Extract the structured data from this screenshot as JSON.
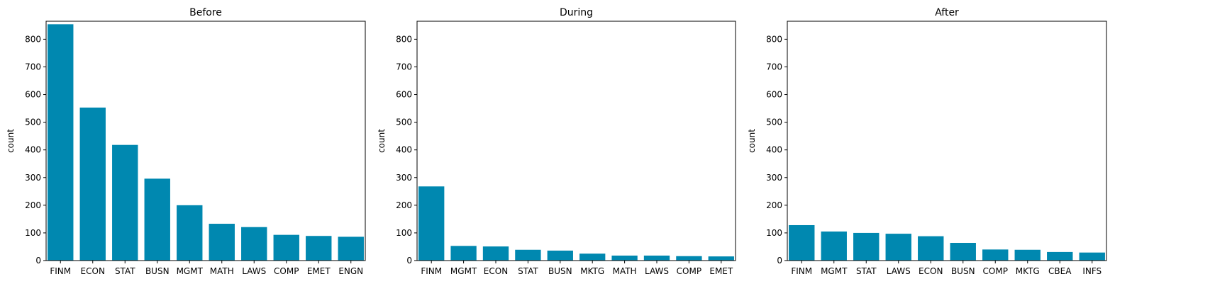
{
  "chart_data": [
    {
      "type": "bar",
      "title": "Before",
      "xlabel": "",
      "ylabel": "count",
      "ylim": [
        0,
        865
      ],
      "yticks": [
        0,
        100,
        200,
        300,
        400,
        500,
        600,
        700,
        800
      ],
      "color": "#0088b0",
      "categories": [
        "FINM",
        "ECON",
        "STAT",
        "BUSN",
        "MGMT",
        "MATH",
        "LAWS",
        "COMP",
        "EMET",
        "ENGN"
      ],
      "values": [
        854,
        553,
        418,
        296,
        200,
        133,
        121,
        93,
        89,
        86
      ]
    },
    {
      "type": "bar",
      "title": "During",
      "xlabel": "",
      "ylabel": "count",
      "ylim": [
        0,
        865
      ],
      "yticks": [
        0,
        100,
        200,
        300,
        400,
        500,
        600,
        700,
        800
      ],
      "color": "#0088b0",
      "categories": [
        "FINM",
        "MGMT",
        "ECON",
        "STAT",
        "BUSN",
        "MKTG",
        "MATH",
        "LAWS",
        "COMP",
        "EMET"
      ],
      "values": [
        268,
        53,
        51,
        39,
        36,
        25,
        18,
        18,
        16,
        15
      ]
    },
    {
      "type": "bar",
      "title": "After",
      "xlabel": "",
      "ylabel": "count",
      "ylim": [
        0,
        865
      ],
      "yticks": [
        0,
        100,
        200,
        300,
        400,
        500,
        600,
        700,
        800
      ],
      "color": "#0088b0",
      "categories": [
        "FINM",
        "MGMT",
        "STAT",
        "LAWS",
        "ECON",
        "BUSN",
        "COMP",
        "MKTG",
        "CBEA",
        "INFS"
      ],
      "values": [
        128,
        105,
        100,
        97,
        88,
        64,
        40,
        39,
        31,
        29
      ]
    }
  ]
}
